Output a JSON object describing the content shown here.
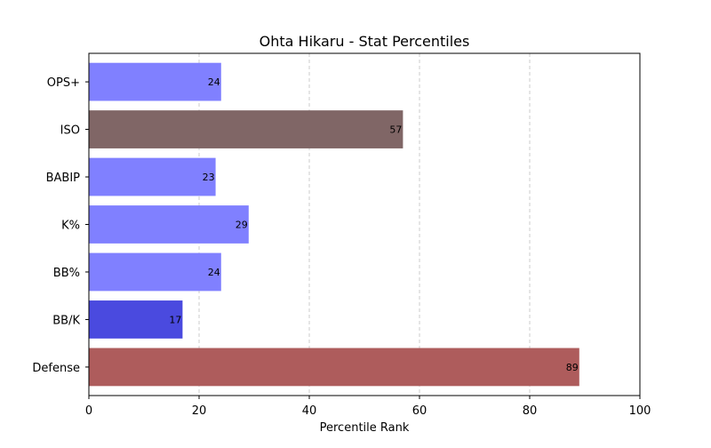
{
  "chart_data": {
    "type": "bar",
    "orientation": "horizontal",
    "title": "Ohta Hikaru - Stat Percentiles",
    "xlabel": "Percentile Rank",
    "ylabel": "",
    "xlim": [
      0,
      100
    ],
    "xticks": [
      0,
      20,
      40,
      60,
      80,
      100
    ],
    "grid": "x-dashed",
    "categories": [
      "OPS+",
      "ISO",
      "BABIP",
      "K%",
      "BB%",
      "BB/K",
      "Defense"
    ],
    "values": [
      24,
      57,
      23,
      29,
      24,
      17,
      89
    ],
    "colors": [
      "#8080ff",
      "#806666",
      "#8080ff",
      "#8080ff",
      "#8080ff",
      "#4a4adf",
      "#ae5c5c"
    ]
  }
}
